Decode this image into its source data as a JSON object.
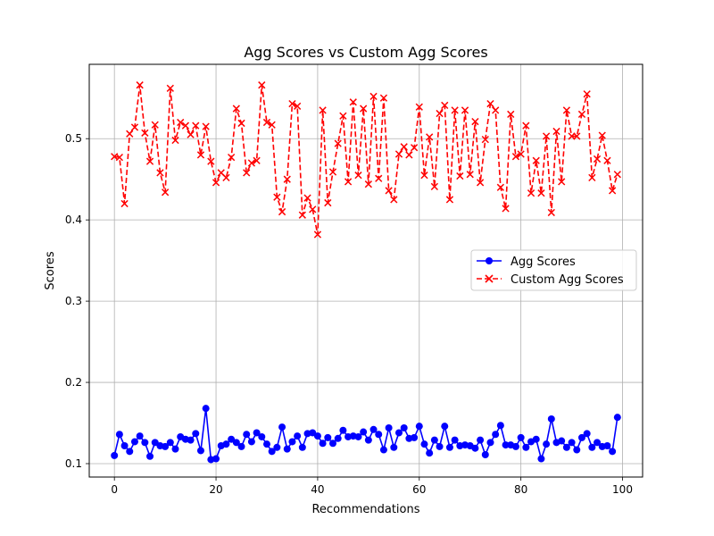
{
  "chart_data": {
    "type": "line",
    "title": "Agg Scores vs Custom Agg Scores",
    "xlabel": "Recommendations",
    "ylabel": "Scores",
    "xlim": [
      -4.95,
      103.95
    ],
    "ylim": [
      0.0835,
      0.5915
    ],
    "xticks": [
      0,
      20,
      40,
      60,
      80,
      100
    ],
    "xtick_labels": [
      "0",
      "20",
      "40",
      "60",
      "80",
      "100"
    ],
    "yticks": [
      0.1,
      0.2,
      0.3,
      0.4,
      0.5
    ],
    "ytick_labels": [
      "0.1",
      "0.2",
      "0.3",
      "0.4",
      "0.5"
    ],
    "grid": true,
    "legend_position": "center-right",
    "series": [
      {
        "name": "Agg Scores",
        "color": "#0000ff",
        "linestyle": "solid",
        "marker": "circle",
        "x": [
          0,
          1,
          2,
          3,
          4,
          5,
          6,
          7,
          8,
          9,
          10,
          11,
          12,
          13,
          14,
          15,
          16,
          17,
          18,
          19,
          20,
          21,
          22,
          23,
          24,
          25,
          26,
          27,
          28,
          29,
          30,
          31,
          32,
          33,
          34,
          35,
          36,
          37,
          38,
          39,
          40,
          41,
          42,
          43,
          44,
          45,
          46,
          47,
          48,
          49,
          50,
          51,
          52,
          53,
          54,
          55,
          56,
          57,
          58,
          59,
          60,
          61,
          62,
          63,
          64,
          65,
          66,
          67,
          68,
          69,
          70,
          71,
          72,
          73,
          74,
          75,
          76,
          77,
          78,
          79,
          80,
          81,
          82,
          83,
          84,
          85,
          86,
          87,
          88,
          89,
          90,
          91,
          92,
          93,
          94,
          95,
          96,
          97,
          98,
          99
        ],
        "values": [
          0.11,
          0.136,
          0.122,
          0.115,
          0.127,
          0.134,
          0.126,
          0.109,
          0.126,
          0.122,
          0.121,
          0.126,
          0.118,
          0.133,
          0.13,
          0.129,
          0.137,
          0.116,
          0.168,
          0.105,
          0.106,
          0.122,
          0.124,
          0.13,
          0.126,
          0.121,
          0.136,
          0.127,
          0.138,
          0.133,
          0.124,
          0.115,
          0.12,
          0.145,
          0.118,
          0.127,
          0.134,
          0.12,
          0.137,
          0.138,
          0.134,
          0.125,
          0.132,
          0.125,
          0.131,
          0.141,
          0.133,
          0.134,
          0.133,
          0.139,
          0.129,
          0.142,
          0.136,
          0.117,
          0.144,
          0.12,
          0.138,
          0.144,
          0.131,
          0.132,
          0.146,
          0.124,
          0.113,
          0.129,
          0.121,
          0.146,
          0.12,
          0.129,
          0.122,
          0.123,
          0.122,
          0.119,
          0.129,
          0.111,
          0.126,
          0.136,
          0.147,
          0.123,
          0.123,
          0.121,
          0.132,
          0.12,
          0.127,
          0.13,
          0.106,
          0.124,
          0.155,
          0.126,
          0.128,
          0.12,
          0.126,
          0.117,
          0.132,
          0.137,
          0.12,
          0.126,
          0.121,
          0.122,
          0.115,
          0.157
        ]
      },
      {
        "name": "Custom Agg Scores",
        "color": "#ff0000",
        "linestyle": "dashed",
        "marker": "x",
        "x": [
          0,
          1,
          2,
          3,
          4,
          5,
          6,
          7,
          8,
          9,
          10,
          11,
          12,
          13,
          14,
          15,
          16,
          17,
          18,
          19,
          20,
          21,
          22,
          23,
          24,
          25,
          26,
          27,
          28,
          29,
          30,
          31,
          32,
          33,
          34,
          35,
          36,
          37,
          38,
          39,
          40,
          41,
          42,
          43,
          44,
          45,
          46,
          47,
          48,
          49,
          50,
          51,
          52,
          53,
          54,
          55,
          56,
          57,
          58,
          59,
          60,
          61,
          62,
          63,
          64,
          65,
          66,
          67,
          68,
          69,
          70,
          71,
          72,
          73,
          74,
          75,
          76,
          77,
          78,
          79,
          80,
          81,
          82,
          83,
          84,
          85,
          86,
          87,
          88,
          89,
          90,
          91,
          92,
          93,
          94,
          95,
          96,
          97,
          98,
          99
        ],
        "values": [
          0.478,
          0.477,
          0.42,
          0.506,
          0.514,
          0.566,
          0.507,
          0.472,
          0.517,
          0.458,
          0.434,
          0.562,
          0.498,
          0.52,
          0.516,
          0.505,
          0.516,
          0.48,
          0.515,
          0.472,
          0.446,
          0.458,
          0.452,
          0.477,
          0.537,
          0.519,
          0.458,
          0.47,
          0.473,
          0.566,
          0.52,
          0.517,
          0.428,
          0.41,
          0.45,
          0.543,
          0.54,
          0.406,
          0.427,
          0.413,
          0.382,
          0.535,
          0.421,
          0.459,
          0.494,
          0.528,
          0.447,
          0.545,
          0.455,
          0.537,
          0.444,
          0.552,
          0.451,
          0.55,
          0.436,
          0.425,
          0.481,
          0.49,
          0.48,
          0.489,
          0.539,
          0.455,
          0.502,
          0.441,
          0.531,
          0.541,
          0.425,
          0.535,
          0.454,
          0.535,
          0.456,
          0.521,
          0.446,
          0.499,
          0.543,
          0.535,
          0.44,
          0.414,
          0.53,
          0.478,
          0.481,
          0.516,
          0.433,
          0.473,
          0.433,
          0.503,
          0.409,
          0.509,
          0.447,
          0.535,
          0.503,
          0.503,
          0.53,
          0.555,
          0.452,
          0.475,
          0.504,
          0.473,
          0.436,
          0.456
        ]
      }
    ]
  }
}
